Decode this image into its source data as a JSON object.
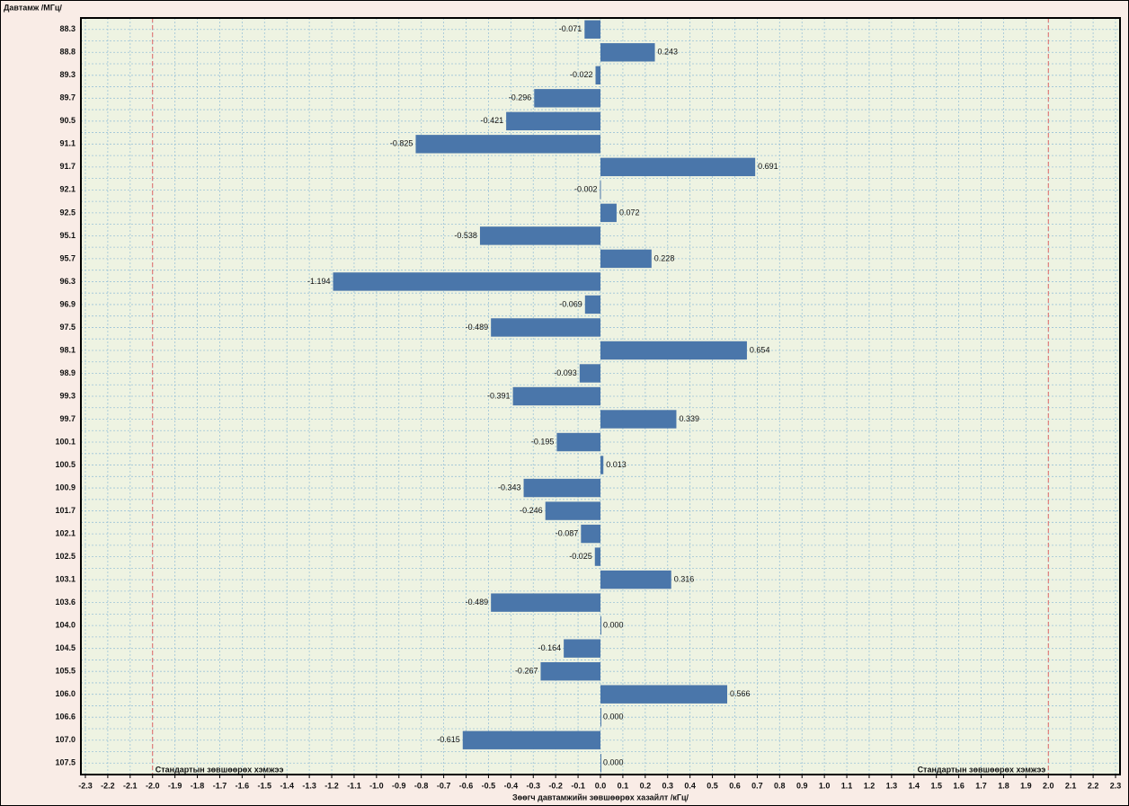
{
  "chart_data": {
    "type": "barh",
    "y_title": "Давтамж /МГц/",
    "x_title": "Зөөгч давтамжийн зөвшөөрөх хазайлт /кГц/",
    "categories": [
      "88.3",
      "88.8",
      "89.3",
      "89.7",
      "90.5",
      "91.1",
      "91.7",
      "92.1",
      "92.5",
      "95.1",
      "95.7",
      "96.3",
      "96.9",
      "97.5",
      "98.1",
      "98.9",
      "99.3",
      "99.7",
      "100.1",
      "100.5",
      "100.9",
      "101.7",
      "102.1",
      "102.5",
      "103.1",
      "103.6",
      "104.0",
      "104.5",
      "105.5",
      "106.0",
      "106.6",
      "107.0",
      "107.5"
    ],
    "values": [
      -0.071,
      0.243,
      -0.022,
      -0.296,
      -0.421,
      -0.825,
      0.691,
      -0.002,
      0.072,
      -0.538,
      0.228,
      -1.194,
      -0.069,
      -0.489,
      0.654,
      -0.093,
      -0.391,
      0.339,
      -0.195,
      0.013,
      -0.343,
      -0.246,
      -0.087,
      -0.025,
      0.316,
      -0.489,
      0.0,
      -0.164,
      -0.267,
      0.566,
      0.0,
      -0.615,
      0.0
    ],
    "value_labels": [
      "-0.071",
      "0.243",
      "-0.022",
      "-0.296",
      "-0.421",
      "-0.825",
      "0.691",
      "-0.002",
      "0.072",
      "-0.538",
      "0.228",
      "-1.194",
      "-0.069",
      "-0.489",
      "0.654",
      "-0.093",
      "-0.391",
      "0.339",
      "-0.195",
      "0.013",
      "-0.343",
      "-0.246",
      "-0.087",
      "-0.025",
      "0.316",
      "-0.489",
      "0.000",
      "-0.164",
      "-0.267",
      "0.566",
      "0.000",
      "-0.615",
      "0.000"
    ],
    "color": "#4a76aa",
    "xlim": [
      -2.32,
      2.32
    ],
    "xticks": [
      -2.3,
      -2.2,
      -2.1,
      {
        "value": -2,
        "label": "-2.0"
      },
      -1.9,
      -1.8,
      -1.7,
      -1.6,
      -1.5,
      -1.4,
      -1.3,
      -1.2,
      -1.1,
      {
        "value": -1,
        "label": "-1.0"
      },
      -0.9,
      -0.8,
      -0.7,
      -0.6,
      -0.5,
      -0.4,
      -0.3,
      -0.2,
      -0.1,
      {
        "value": 0,
        "label": "0.0"
      },
      0.1,
      0.2,
      0.3,
      0.4,
      0.5,
      0.6,
      0.7,
      0.8,
      0.9,
      {
        "value": 1,
        "label": "1.0"
      },
      1.1,
      1.2,
      1.3,
      1.4,
      1.5,
      1.6,
      1.7,
      1.8,
      1.9,
      {
        "value": 2,
        "label": "2.0"
      },
      2.1,
      2.2,
      2.3
    ],
    "grid": true,
    "limit_lines": [
      {
        "value": -2,
        "label": "Стандартын зөвшөөрөх хэмжээ",
        "color": "#e06666"
      },
      {
        "value": 2,
        "label": "Стандартын зөвшөөрөх хэмжээ",
        "color": "#e06666"
      }
    ]
  }
}
